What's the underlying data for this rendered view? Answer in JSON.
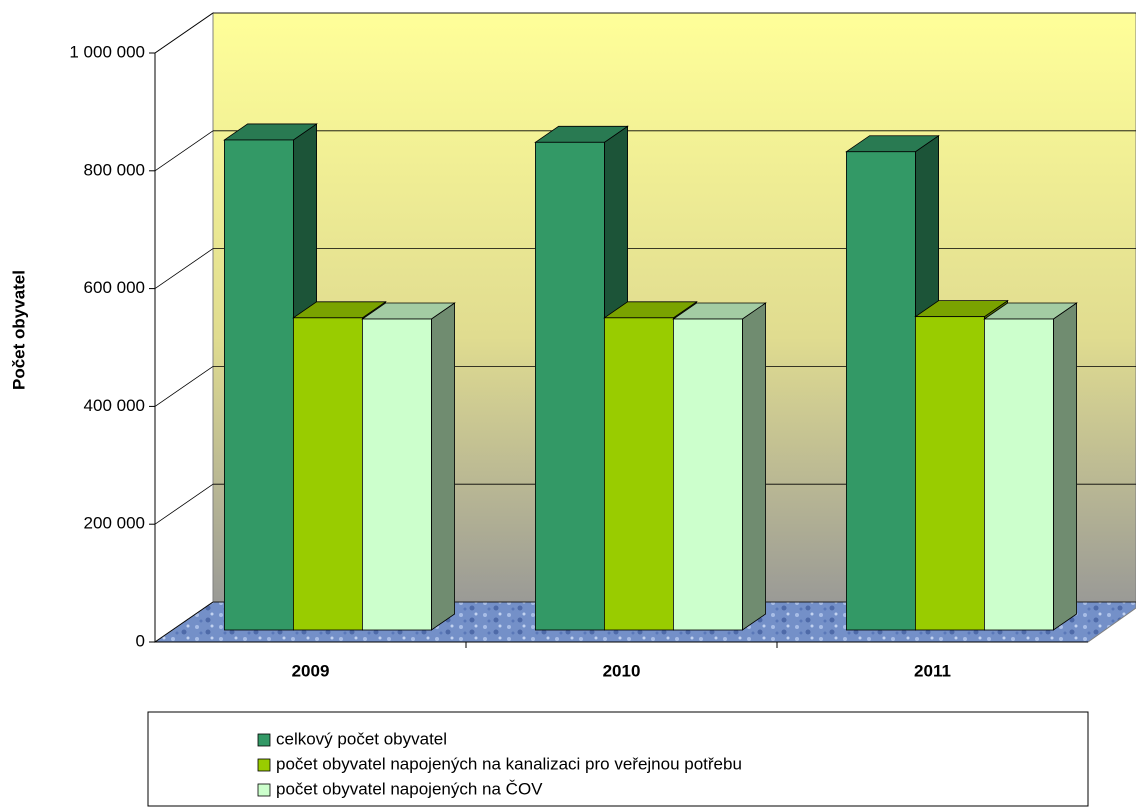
{
  "chart_data": {
    "type": "bar3d",
    "y_label": "Počet obyvatel",
    "categories": [
      "2009",
      "2010",
      "2011"
    ],
    "series": [
      {
        "name": "celkový počet obyvatel",
        "color": "#339966",
        "values": [
          832000,
          828000,
          812000
        ]
      },
      {
        "name": "počet obyvatel napojených na kanalizaci pro veřejnou potřebu",
        "color": "#99cc00",
        "values": [
          530000,
          530000,
          532000
        ]
      },
      {
        "name": "počet obyvatel napojených na ČOV",
        "color": "#ccffcc",
        "values": [
          528000,
          528000,
          528000
        ]
      }
    ],
    "ylim": [
      0,
      1000000
    ],
    "yticks": [
      0,
      {
        "value": 200000,
        "label": "200 000"
      },
      {
        "value": 400000,
        "label": "400 000"
      },
      {
        "value": 600000,
        "label": "600 000"
      },
      {
        "value": 800000,
        "label": "800 000"
      },
      {
        "value": 1000000,
        "label": "1 000 000"
      }
    ],
    "grid": true,
    "legend": "bottom"
  }
}
